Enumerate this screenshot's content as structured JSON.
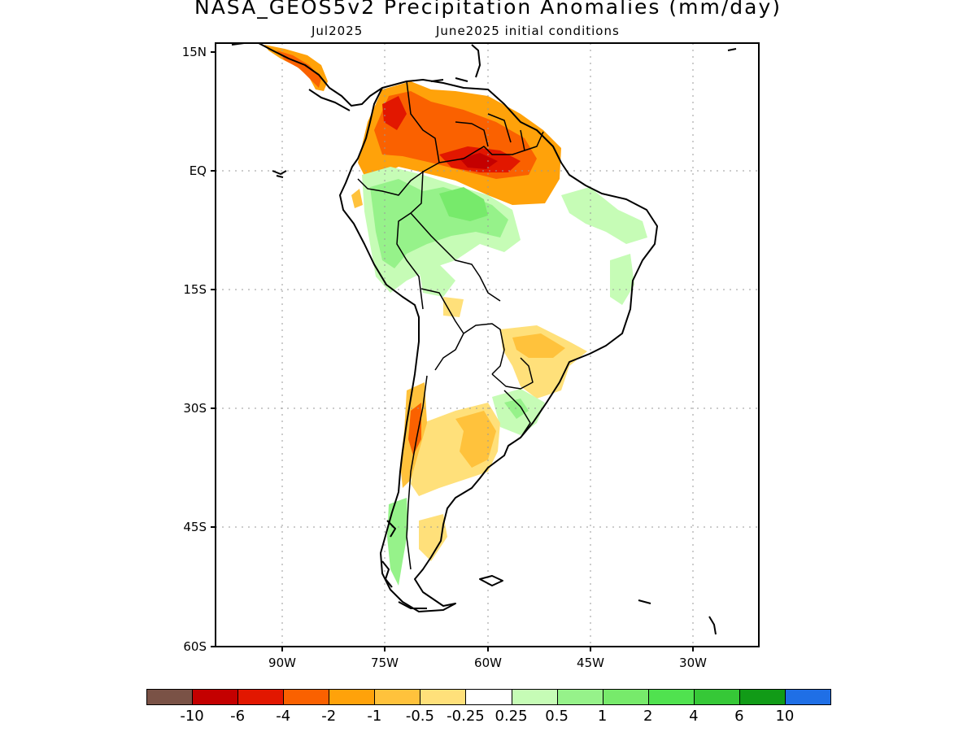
{
  "title": "NASA_GEOS5v2 Precipitation Anomalies (mm/day)",
  "subtitle_left": "Jul2025",
  "subtitle_right": "June2025 initial conditions",
  "map": {
    "region": "South America",
    "lat_labels": [
      "15N",
      "EQ",
      "15S",
      "30S",
      "45S",
      "60S"
    ],
    "lon_labels": [
      "90W",
      "75W",
      "60W",
      "45W",
      "30W"
    ],
    "lat_range": [
      -60,
      15
    ],
    "lon_range": [
      -100,
      -20
    ]
  },
  "legend": {
    "colors": [
      "#7a5246",
      "#c40000",
      "#e21700",
      "#fa6100",
      "#ffa20a",
      "#ffc23c",
      "#ffe07a",
      "#ffffff",
      "#c6fcb6",
      "#96f28a",
      "#77ea6b",
      "#50e24f",
      "#36c837",
      "#119b17",
      "#1f6fe6"
    ],
    "labels": [
      "-10",
      "-6",
      "-4",
      "-2",
      "-1",
      "-0.5",
      "-0.25",
      "0.25",
      "0.5",
      "1",
      "2",
      "4",
      "6",
      "10"
    ]
  }
}
